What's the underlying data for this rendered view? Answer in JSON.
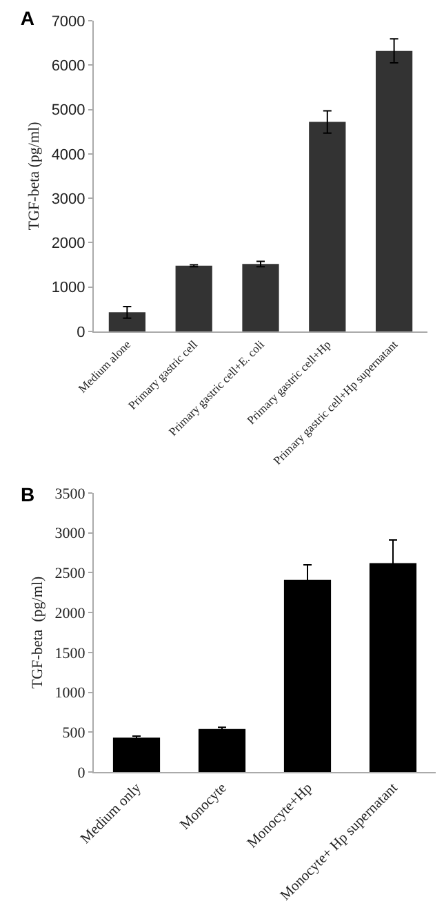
{
  "chart_data": [
    {
      "type": "bar",
      "title": "A",
      "ylabel": "TGF-beta (pg/ml)",
      "categories": [
        "Medium alone",
        "Primary gastric cell",
        "Primary gastric cell+E. coli",
        "Primary gastric cell+Hp",
        "Primary gastric cell+Hp supernatant"
      ],
      "values": [
        430,
        1480,
        1520,
        4720,
        6320
      ],
      "errors": [
        130,
        20,
        60,
        250,
        270
      ],
      "color": "#333333",
      "ylim": [
        0,
        7000
      ],
      "yticks": [
        0,
        1000,
        2000,
        3000,
        4000,
        5000,
        6000,
        7000
      ],
      "grid": false
    },
    {
      "type": "bar",
      "title": "B",
      "ylabel": "TGF-beta  (pg/ml)",
      "categories": [
        "Medium only",
        "Monocyte",
        "Monocyte+Hp",
        "Monocyte+ Hp supernatant"
      ],
      "values": [
        430,
        540,
        2410,
        2620
      ],
      "errors": [
        20,
        20,
        190,
        290
      ],
      "color": "#000000",
      "ylim": [
        0,
        3500
      ],
      "yticks": [
        0,
        500,
        1000,
        1500,
        2000,
        2500,
        3000,
        3500
      ],
      "grid": false
    }
  ]
}
